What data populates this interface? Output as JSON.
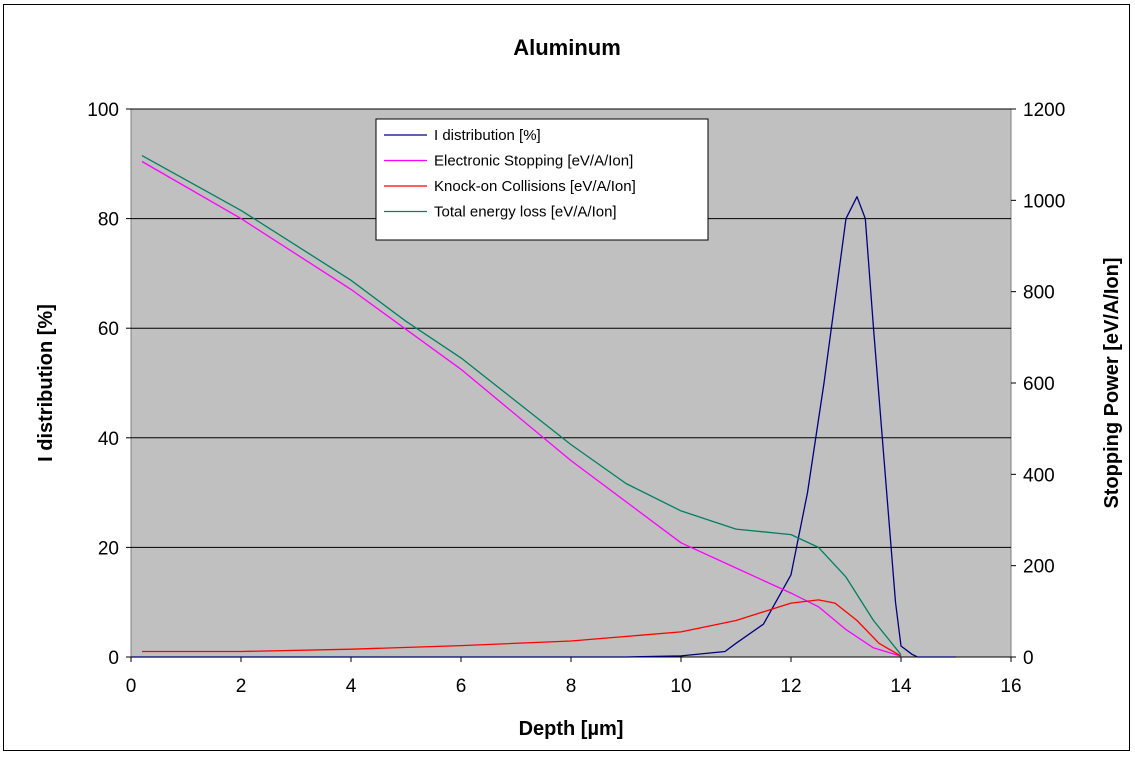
{
  "chart_data": {
    "type": "line",
    "title": "Aluminum",
    "xlabel": "Depth [µm]",
    "ylabel_left": "I distribution [%]",
    "ylabel_right": "Stopping Power [eV/A/Ion]",
    "xlim": [
      0,
      16
    ],
    "ylim_left": [
      0,
      100
    ],
    "ylim_right": [
      0,
      1200
    ],
    "x_ticks": [
      "0",
      "2",
      "4",
      "6",
      "8",
      "10",
      "12",
      "14",
      "16"
    ],
    "y_left_ticks": [
      "0",
      "20",
      "40",
      "60",
      "80",
      "100"
    ],
    "y_right_ticks": [
      "0",
      "200",
      "400",
      "600",
      "800",
      "1000",
      "1200"
    ],
    "grid": "horizontal",
    "background": "#c0c0c0",
    "legend_position": "top-center",
    "series": [
      {
        "name": "I distribution [%]",
        "axis": "left",
        "color": "#000080",
        "points": [
          [
            0,
            0
          ],
          [
            9,
            0
          ],
          [
            10,
            0.2
          ],
          [
            10.8,
            1
          ],
          [
            11,
            2.5
          ],
          [
            11.5,
            6
          ],
          [
            12,
            15
          ],
          [
            12.3,
            30
          ],
          [
            12.6,
            50
          ],
          [
            12.8,
            65
          ],
          [
            13.0,
            80
          ],
          [
            13.2,
            84
          ],
          [
            13.35,
            80
          ],
          [
            13.5,
            60
          ],
          [
            13.7,
            35
          ],
          [
            13.9,
            10
          ],
          [
            14.0,
            2
          ],
          [
            14.2,
            0.5
          ],
          [
            14.3,
            0
          ],
          [
            15,
            0
          ]
        ]
      },
      {
        "name": "Electronic Stopping [eV/A/Ion]",
        "axis": "right",
        "color": "#ff00ff",
        "points": [
          [
            0.2,
            1085
          ],
          [
            2,
            960
          ],
          [
            4,
            805
          ],
          [
            6,
            630
          ],
          [
            8,
            430
          ],
          [
            10,
            250
          ],
          [
            11,
            195
          ],
          [
            12,
            140
          ],
          [
            12.5,
            110
          ],
          [
            13,
            60
          ],
          [
            13.5,
            20
          ],
          [
            14,
            2
          ]
        ]
      },
      {
        "name": "Knock-on Collisions [eV/A/Ion]",
        "axis": "right",
        "color": "#ff0000",
        "points": [
          [
            0.2,
            12
          ],
          [
            2,
            12
          ],
          [
            4,
            17
          ],
          [
            6,
            25
          ],
          [
            8,
            35
          ],
          [
            10,
            55
          ],
          [
            11,
            80
          ],
          [
            12,
            118
          ],
          [
            12.5,
            125
          ],
          [
            12.8,
            118
          ],
          [
            13.2,
            80
          ],
          [
            13.6,
            30
          ],
          [
            14,
            2
          ]
        ]
      },
      {
        "name": "Total energy loss [eV/A/Ion]",
        "axis": "right",
        "color": "#008060",
        "points": [
          [
            0.2,
            1098
          ],
          [
            2,
            978
          ],
          [
            4,
            825
          ],
          [
            5,
            735
          ],
          [
            6,
            655
          ],
          [
            8,
            465
          ],
          [
            9,
            380
          ],
          [
            10,
            320
          ],
          [
            11,
            280
          ],
          [
            12,
            268
          ],
          [
            12.5,
            240
          ],
          [
            13,
            175
          ],
          [
            13.5,
            80
          ],
          [
            14,
            5
          ]
        ]
      }
    ]
  }
}
